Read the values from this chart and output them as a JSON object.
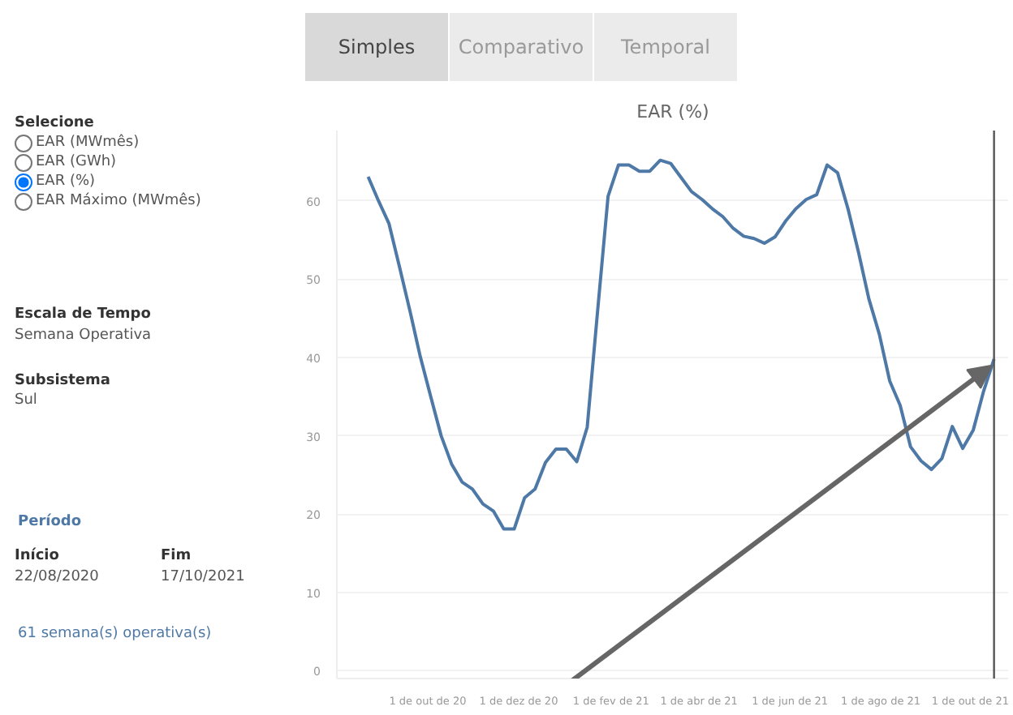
{
  "chart_data": {
    "type": "line",
    "title": "EAR (%)",
    "x": [
      "2020-08-22",
      "2020-08-29",
      "2020-09-05",
      "2020-09-12",
      "2020-09-19",
      "2020-09-26",
      "2020-10-03",
      "2020-10-10",
      "2020-10-17",
      "2020-10-24",
      "2020-10-31",
      "2020-11-07",
      "2020-11-14",
      "2020-11-21",
      "2020-11-28",
      "2020-12-05",
      "2020-12-12",
      "2020-12-19",
      "2020-12-26",
      "2021-01-02",
      "2021-01-09",
      "2021-01-16",
      "2021-01-23",
      "2021-01-30",
      "2021-02-06",
      "2021-02-13",
      "2021-02-20",
      "2021-02-27",
      "2021-03-06",
      "2021-03-13",
      "2021-03-20",
      "2021-03-27",
      "2021-04-03",
      "2021-04-10",
      "2021-04-17",
      "2021-04-24",
      "2021-05-01",
      "2021-05-08",
      "2021-05-15",
      "2021-05-22",
      "2021-05-29",
      "2021-06-05",
      "2021-06-12",
      "2021-06-19",
      "2021-06-26",
      "2021-07-03",
      "2021-07-10",
      "2021-07-17",
      "2021-07-24",
      "2021-07-31",
      "2021-08-07",
      "2021-08-14",
      "2021-08-21",
      "2021-08-28",
      "2021-09-04",
      "2021-09-11",
      "2021-09-18",
      "2021-09-25",
      "2021-10-02",
      "2021-10-09",
      "2021-10-16"
    ],
    "series": [
      {
        "color": "#4e79a7",
        "values": [
          63.1,
          60,
          57.1,
          51.6,
          46,
          40.1,
          35,
          30,
          26.4,
          24.1,
          23.2,
          21.3,
          20.4,
          18.1,
          18.1,
          22.1,
          23.2,
          26.6,
          28.3,
          28.3,
          26.7,
          31.1,
          46,
          60.6,
          64.6,
          64.6,
          63.8,
          63.8,
          65.2,
          64.8,
          63,
          61.2,
          60.2,
          59,
          58,
          56.5,
          55.5,
          55.2,
          54.6,
          55.4,
          57.4,
          59,
          60.2,
          60.8,
          64.6,
          63.6,
          59,
          53.5,
          47.5,
          43,
          37,
          33.9,
          28.6,
          26.8,
          25.7,
          27.1,
          31.2,
          28.4,
          30.7,
          35.7,
          39.8
        ]
      }
    ],
    "xlim": [
      "2020-08-01",
      "2021-10-26"
    ],
    "xticks": [
      {
        "value": "2020-10-01",
        "label": "1 de out de 20"
      },
      {
        "value": "2020-12-01",
        "label": "1 de dez de 20"
      },
      {
        "value": "2021-02-01",
        "label": "1 de fev de 21"
      },
      {
        "value": "2021-04-01",
        "label": "1 de abr de 21"
      },
      {
        "value": "2021-06-01",
        "label": "1 de jun de 21"
      },
      {
        "value": "2021-08-01",
        "label": "1 de ago de 21"
      },
      {
        "value": "2021-10-01",
        "label": "1 de out de 21"
      }
    ],
    "ylim": [
      -1,
      69
    ],
    "yticks": [
      0,
      10,
      20,
      30,
      40,
      50,
      60
    ],
    "grid": "y",
    "ref_lines": [
      {
        "axis": "x",
        "value": "2021-10-16",
        "color": "#555555"
      }
    ],
    "annotations": [
      "Simples",
      "Comparativo",
      "Temporal",
      "Selecione",
      "EAR (MWmês)",
      "EAR (GWh)",
      "EAR (%)",
      "EAR Máximo (MWmês)",
      "Escala de Tempo",
      "Semana Operativa",
      "Subsistema",
      "Sul",
      "Período",
      "Início",
      "22/08/2020",
      "Fim",
      "17/10/2021",
      "61 semana(s) operativa(s)"
    ]
  }
}
